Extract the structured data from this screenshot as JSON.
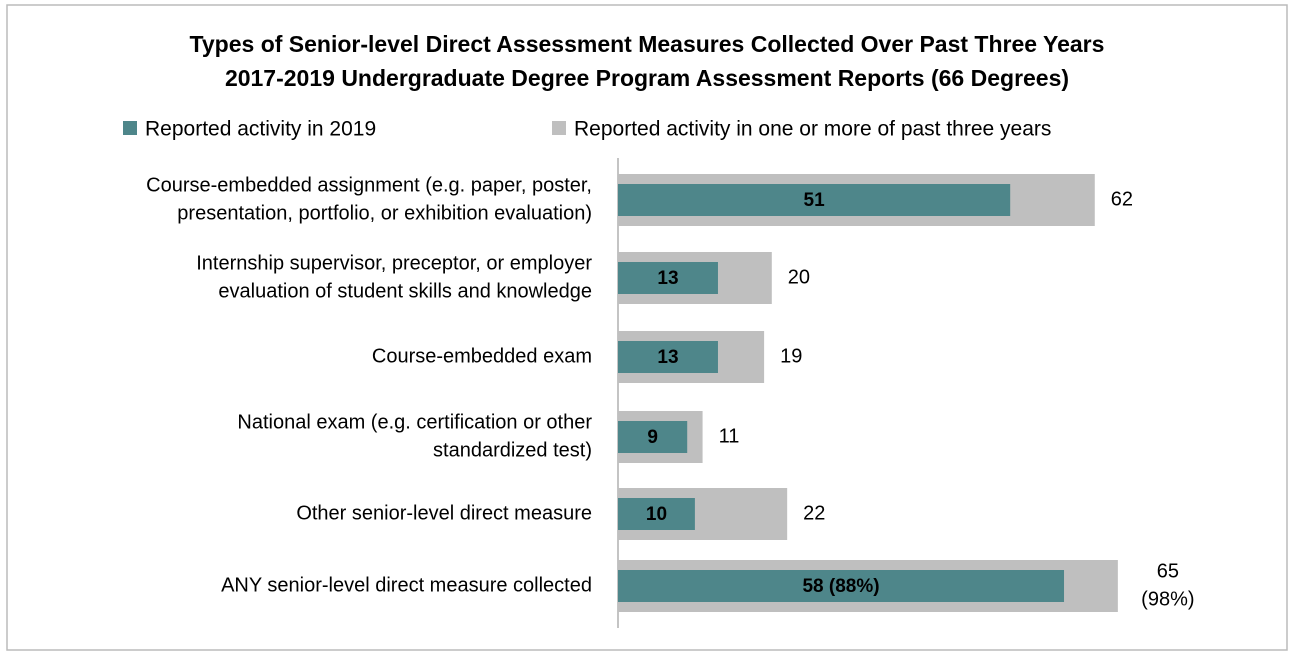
{
  "chart_data": {
    "type": "overlap_barh",
    "title": [
      "Types of Senior-level Direct Assessment Measures Collected Over Past Three Years",
      "2017-2019 Undergraduate Degree Program Assessment Reports (66 Degrees)"
    ],
    "categories": [
      [
        "Course-embedded assignment (e.g. paper, poster,",
        "presentation, portfolio, or exhibition evaluation)"
      ],
      [
        "Internship supervisor, preceptor, or employer",
        "evaluation of student skills and knowledge"
      ],
      [
        "Course-embedded exam"
      ],
      [
        "National exam (e.g. certification or other",
        "standardized test)"
      ],
      [
        "Other senior-level direct measure"
      ],
      [
        "ANY senior-level direct measure collected"
      ]
    ],
    "series": [
      {
        "name": "Reported activity in one or more of past three years",
        "color": "#bfbfbf",
        "values": [
          62,
          20,
          19,
          11,
          22,
          65
        ],
        "value_labels": [
          [
            "62"
          ],
          [
            "20"
          ],
          [
            "19"
          ],
          [
            "11"
          ],
          [
            "22"
          ],
          [
            "65",
            "(98%)"
          ]
        ]
      },
      {
        "name": "Reported activity in 2019",
        "color": "#4e868a",
        "values": [
          51,
          13,
          13,
          9,
          10,
          58
        ],
        "value_labels": [
          "51",
          "13",
          "13",
          "9",
          "10",
          "58 (88%)"
        ]
      }
    ],
    "legend_order": [
      1,
      0
    ],
    "xlim": [
      0,
      80
    ]
  }
}
